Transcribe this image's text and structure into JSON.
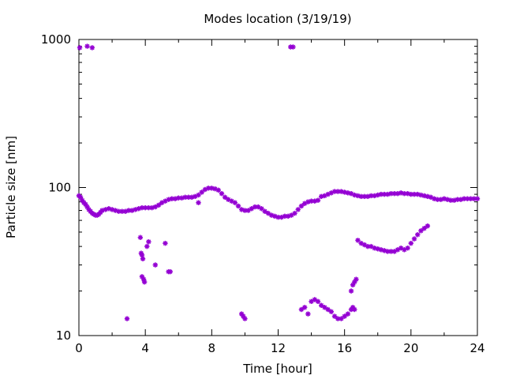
{
  "chart_data": {
    "type": "scatter",
    "title": "Modes location (3/19/19)",
    "xlabel": "Time [hour]",
    "ylabel": "Particle size [nm]",
    "xlim": [
      0,
      24
    ],
    "ylim": [
      10,
      1000
    ],
    "yscale": "log",
    "x_ticks": [
      0,
      4,
      8,
      12,
      16,
      20,
      24
    ],
    "x_tick_labels": [
      "0",
      "4",
      "8",
      "12",
      "16",
      "20",
      "24"
    ],
    "y_ticks": [
      10,
      100,
      1000
    ],
    "y_tick_labels": [
      "10",
      "100",
      "1000"
    ],
    "grid": false,
    "legend": "none",
    "marker_color": "#9400d3",
    "series": [
      {
        "points": [
          [
            0.0,
            88
          ],
          [
            0.1,
            86
          ],
          [
            0.2,
            82
          ],
          [
            0.3,
            79
          ],
          [
            0.4,
            77
          ],
          [
            0.5,
            74
          ],
          [
            0.6,
            71
          ],
          [
            0.7,
            69
          ],
          [
            0.8,
            67
          ],
          [
            0.9,
            66
          ],
          [
            1.0,
            65
          ],
          [
            1.1,
            65
          ],
          [
            1.2,
            66
          ],
          [
            1.3,
            68
          ],
          [
            1.4,
            70
          ],
          [
            1.6,
            71
          ],
          [
            1.8,
            72
          ],
          [
            2.0,
            71
          ],
          [
            2.2,
            70
          ],
          [
            2.4,
            69
          ],
          [
            2.6,
            69
          ],
          [
            2.8,
            69
          ],
          [
            3.0,
            70
          ],
          [
            3.2,
            70
          ],
          [
            3.4,
            71
          ],
          [
            3.6,
            72
          ],
          [
            3.8,
            73
          ],
          [
            4.0,
            73
          ],
          [
            4.2,
            73
          ],
          [
            4.4,
            73
          ],
          [
            4.6,
            74
          ],
          [
            4.8,
            76
          ],
          [
            5.0,
            79
          ],
          [
            5.2,
            81
          ],
          [
            5.4,
            83
          ],
          [
            5.6,
            84
          ],
          [
            5.8,
            84
          ],
          [
            6.0,
            85
          ],
          [
            6.2,
            85
          ],
          [
            6.4,
            86
          ],
          [
            6.6,
            86
          ],
          [
            6.8,
            86
          ],
          [
            7.0,
            87
          ],
          [
            7.2,
            89
          ],
          [
            7.4,
            93
          ],
          [
            7.6,
            97
          ],
          [
            7.8,
            99
          ],
          [
            8.0,
            99
          ],
          [
            8.2,
            98
          ],
          [
            8.4,
            96
          ],
          [
            8.6,
            91
          ],
          [
            8.8,
            86
          ],
          [
            9.0,
            83
          ],
          [
            9.2,
            81
          ],
          [
            9.4,
            79
          ],
          [
            9.6,
            75
          ],
          [
            9.8,
            71
          ],
          [
            10.0,
            70
          ],
          [
            10.2,
            70
          ],
          [
            10.4,
            72
          ],
          [
            10.6,
            74
          ],
          [
            10.8,
            74
          ],
          [
            11.0,
            72
          ],
          [
            11.2,
            69
          ],
          [
            11.4,
            67
          ],
          [
            11.6,
            65
          ],
          [
            11.8,
            64
          ],
          [
            12.0,
            63
          ],
          [
            12.2,
            63
          ],
          [
            12.4,
            64
          ],
          [
            12.6,
            64
          ],
          [
            12.8,
            65
          ],
          [
            13.0,
            67
          ],
          [
            13.2,
            71
          ],
          [
            13.4,
            75
          ],
          [
            13.6,
            78
          ],
          [
            13.8,
            80
          ],
          [
            14.0,
            81
          ],
          [
            14.2,
            81
          ],
          [
            14.4,
            82
          ],
          [
            14.6,
            87
          ],
          [
            14.8,
            88
          ],
          [
            15.0,
            90
          ],
          [
            15.2,
            92
          ],
          [
            15.4,
            94
          ],
          [
            15.6,
            94
          ],
          [
            15.8,
            94
          ],
          [
            16.0,
            93
          ],
          [
            16.2,
            92
          ],
          [
            16.4,
            91
          ],
          [
            16.6,
            89
          ],
          [
            16.8,
            88
          ],
          [
            17.0,
            87
          ],
          [
            17.2,
            87
          ],
          [
            17.4,
            87
          ],
          [
            17.6,
            88
          ],
          [
            17.8,
            88
          ],
          [
            18.0,
            89
          ],
          [
            18.2,
            90
          ],
          [
            18.4,
            90
          ],
          [
            18.6,
            90
          ],
          [
            18.8,
            91
          ],
          [
            19.0,
            91
          ],
          [
            19.2,
            91
          ],
          [
            19.4,
            92
          ],
          [
            19.6,
            91
          ],
          [
            19.8,
            91
          ],
          [
            20.0,
            90
          ],
          [
            20.2,
            90
          ],
          [
            20.4,
            90
          ],
          [
            20.6,
            89
          ],
          [
            20.8,
            88
          ],
          [
            21.0,
            87
          ],
          [
            21.2,
            86
          ],
          [
            21.4,
            84
          ],
          [
            21.6,
            83
          ],
          [
            21.8,
            83
          ],
          [
            22.0,
            84
          ],
          [
            22.2,
            83
          ],
          [
            22.4,
            82
          ],
          [
            22.6,
            82
          ],
          [
            22.8,
            83
          ],
          [
            23.0,
            83
          ],
          [
            23.2,
            84
          ],
          [
            23.4,
            84
          ],
          [
            23.6,
            84
          ],
          [
            23.8,
            84
          ],
          [
            24.0,
            84
          ],
          [
            0.05,
            880
          ],
          [
            0.5,
            900
          ],
          [
            0.8,
            880
          ],
          [
            12.75,
            890
          ],
          [
            12.9,
            890
          ],
          [
            2.9,
            13
          ],
          [
            3.7,
            46
          ],
          [
            3.75,
            36
          ],
          [
            3.8,
            35
          ],
          [
            3.85,
            33
          ],
          [
            3.8,
            25
          ],
          [
            3.9,
            24
          ],
          [
            3.95,
            23
          ],
          [
            4.1,
            40
          ],
          [
            4.2,
            43
          ],
          [
            4.6,
            30
          ],
          [
            5.2,
            42
          ],
          [
            5.4,
            27
          ],
          [
            5.5,
            27
          ],
          [
            7.2,
            79
          ],
          [
            9.8,
            14
          ],
          [
            9.9,
            13.5
          ],
          [
            10.0,
            13
          ],
          [
            13.4,
            15
          ],
          [
            13.6,
            15.5
          ],
          [
            13.8,
            14
          ],
          [
            14.0,
            17
          ],
          [
            14.2,
            17.5
          ],
          [
            14.4,
            17
          ],
          [
            14.6,
            16
          ],
          [
            14.8,
            15.5
          ],
          [
            15.0,
            15
          ],
          [
            15.2,
            14.5
          ],
          [
            15.4,
            13.5
          ],
          [
            15.6,
            13
          ],
          [
            15.8,
            13
          ],
          [
            16.0,
            13.5
          ],
          [
            16.2,
            14
          ],
          [
            16.4,
            15
          ],
          [
            16.5,
            15.5
          ],
          [
            16.6,
            15
          ],
          [
            16.4,
            20
          ],
          [
            16.5,
            22
          ],
          [
            16.6,
            23
          ],
          [
            16.7,
            24
          ],
          [
            16.8,
            44
          ],
          [
            17.0,
            42
          ],
          [
            17.2,
            41
          ],
          [
            17.4,
            40
          ],
          [
            17.6,
            40
          ],
          [
            17.8,
            39
          ],
          [
            18.0,
            38.5
          ],
          [
            18.2,
            38
          ],
          [
            18.4,
            37.5
          ],
          [
            18.6,
            37
          ],
          [
            18.8,
            37
          ],
          [
            19.0,
            37
          ],
          [
            19.2,
            38
          ],
          [
            19.4,
            39
          ],
          [
            19.6,
            38
          ],
          [
            19.8,
            39
          ],
          [
            20.0,
            42
          ],
          [
            20.2,
            45
          ],
          [
            20.4,
            48
          ],
          [
            20.6,
            51
          ],
          [
            20.8,
            53
          ],
          [
            21.0,
            55
          ]
        ]
      }
    ]
  }
}
